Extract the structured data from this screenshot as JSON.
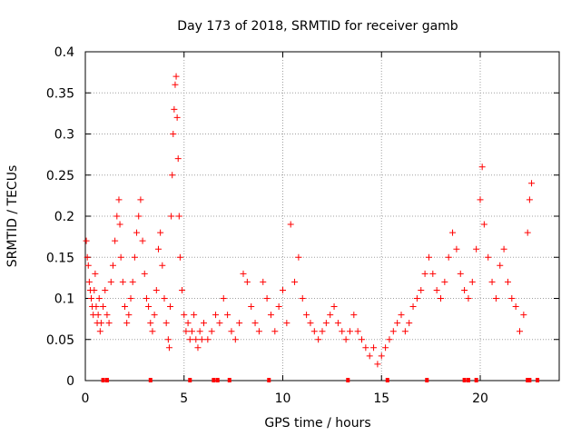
{
  "chart_data": {
    "type": "scatter",
    "title": "Day 173 of 2018, SRMTID for receiver gamb",
    "xlabel": "GPS time / hours",
    "ylabel": "SRMTID / TECUs",
    "xlim": [
      0,
      24
    ],
    "ylim": [
      0,
      0.4
    ],
    "xticks": [
      0,
      5,
      10,
      15,
      20
    ],
    "xtick_labels": [
      "0",
      "5",
      "10",
      "15",
      "20"
    ],
    "yticks": [
      0,
      0.05,
      0.1,
      0.15,
      0.2,
      0.25,
      0.3,
      0.35,
      0.4
    ],
    "ytick_labels": [
      "0",
      "0.05",
      "0.1",
      "0.15",
      "0.2",
      "0.25",
      "0.3",
      "0.35",
      "0.4"
    ],
    "grid": true,
    "marker": "+",
    "color": "#ff0000",
    "series": [
      {
        "name": "SRMTID",
        "points": [
          [
            0.05,
            0.17
          ],
          [
            0.1,
            0.15
          ],
          [
            0.15,
            0.14
          ],
          [
            0.2,
            0.12
          ],
          [
            0.25,
            0.11
          ],
          [
            0.3,
            0.1
          ],
          [
            0.35,
            0.09
          ],
          [
            0.4,
            0.08
          ],
          [
            0.45,
            0.11
          ],
          [
            0.5,
            0.13
          ],
          [
            0.55,
            0.09
          ],
          [
            0.6,
            0.07
          ],
          [
            0.65,
            0.08
          ],
          [
            0.7,
            0.1
          ],
          [
            0.75,
            0.06
          ],
          [
            0.8,
            0.07
          ],
          [
            0.9,
            0.09
          ],
          [
            1.0,
            0.11
          ],
          [
            1.1,
            0.08
          ],
          [
            1.2,
            0.07
          ],
          [
            1.3,
            0.12
          ],
          [
            1.4,
            0.14
          ],
          [
            1.5,
            0.17
          ],
          [
            1.6,
            0.2
          ],
          [
            1.7,
            0.22
          ],
          [
            1.75,
            0.19
          ],
          [
            1.8,
            0.15
          ],
          [
            1.9,
            0.12
          ],
          [
            2.0,
            0.09
          ],
          [
            2.1,
            0.07
          ],
          [
            2.2,
            0.08
          ],
          [
            2.3,
            0.1
          ],
          [
            2.4,
            0.12
          ],
          [
            2.5,
            0.15
          ],
          [
            2.6,
            0.18
          ],
          [
            2.7,
            0.2
          ],
          [
            2.8,
            0.22
          ],
          [
            2.9,
            0.17
          ],
          [
            3.0,
            0.13
          ],
          [
            3.1,
            0.1
          ],
          [
            3.2,
            0.09
          ],
          [
            3.3,
            0.07
          ],
          [
            3.4,
            0.06
          ],
          [
            3.5,
            0.08
          ],
          [
            3.6,
            0.11
          ],
          [
            3.7,
            0.16
          ],
          [
            3.8,
            0.18
          ],
          [
            3.9,
            0.14
          ],
          [
            4.0,
            0.1
          ],
          [
            4.1,
            0.07
          ],
          [
            4.2,
            0.05
          ],
          [
            4.25,
            0.04
          ],
          [
            4.3,
            0.09
          ],
          [
            4.35,
            0.2
          ],
          [
            4.4,
            0.25
          ],
          [
            4.45,
            0.3
          ],
          [
            4.5,
            0.33
          ],
          [
            4.55,
            0.36
          ],
          [
            4.6,
            0.37
          ],
          [
            4.65,
            0.32
          ],
          [
            4.7,
            0.27
          ],
          [
            4.75,
            0.2
          ],
          [
            4.8,
            0.15
          ],
          [
            4.9,
            0.11
          ],
          [
            5.0,
            0.08
          ],
          [
            5.1,
            0.06
          ],
          [
            5.2,
            0.07
          ],
          [
            5.3,
            0.05
          ],
          [
            5.4,
            0.06
          ],
          [
            5.5,
            0.08
          ],
          [
            5.6,
            0.05
          ],
          [
            5.7,
            0.04
          ],
          [
            5.8,
            0.06
          ],
          [
            5.9,
            0.05
          ],
          [
            6.0,
            0.07
          ],
          [
            6.2,
            0.05
          ],
          [
            6.4,
            0.06
          ],
          [
            6.6,
            0.08
          ],
          [
            6.8,
            0.07
          ],
          [
            7.0,
            0.1
          ],
          [
            7.2,
            0.08
          ],
          [
            7.4,
            0.06
          ],
          [
            7.6,
            0.05
          ],
          [
            7.8,
            0.07
          ],
          [
            8.0,
            0.13
          ],
          [
            8.2,
            0.12
          ],
          [
            8.4,
            0.09
          ],
          [
            8.6,
            0.07
          ],
          [
            8.8,
            0.06
          ],
          [
            9.0,
            0.12
          ],
          [
            9.2,
            0.1
          ],
          [
            9.4,
            0.08
          ],
          [
            9.6,
            0.06
          ],
          [
            9.8,
            0.09
          ],
          [
            10.0,
            0.11
          ],
          [
            10.2,
            0.07
          ],
          [
            10.4,
            0.19
          ],
          [
            10.6,
            0.12
          ],
          [
            10.8,
            0.15
          ],
          [
            11.0,
            0.1
          ],
          [
            11.2,
            0.08
          ],
          [
            11.4,
            0.07
          ],
          [
            11.6,
            0.06
          ],
          [
            11.8,
            0.05
          ],
          [
            12.0,
            0.06
          ],
          [
            12.2,
            0.07
          ],
          [
            12.4,
            0.08
          ],
          [
            12.6,
            0.09
          ],
          [
            12.8,
            0.07
          ],
          [
            13.0,
            0.06
          ],
          [
            13.2,
            0.05
          ],
          [
            13.4,
            0.06
          ],
          [
            13.6,
            0.08
          ],
          [
            13.8,
            0.06
          ],
          [
            14.0,
            0.05
          ],
          [
            14.2,
            0.04
          ],
          [
            14.4,
            0.03
          ],
          [
            14.6,
            0.04
          ],
          [
            14.8,
            0.02
          ],
          [
            15.0,
            0.03
          ],
          [
            15.2,
            0.04
          ],
          [
            15.4,
            0.05
          ],
          [
            15.6,
            0.06
          ],
          [
            15.8,
            0.07
          ],
          [
            16.0,
            0.08
          ],
          [
            16.2,
            0.06
          ],
          [
            16.4,
            0.07
          ],
          [
            16.6,
            0.09
          ],
          [
            16.8,
            0.1
          ],
          [
            17.0,
            0.11
          ],
          [
            17.2,
            0.13
          ],
          [
            17.4,
            0.15
          ],
          [
            17.6,
            0.13
          ],
          [
            17.8,
            0.11
          ],
          [
            18.0,
            0.1
          ],
          [
            18.2,
            0.12
          ],
          [
            18.4,
            0.15
          ],
          [
            18.6,
            0.18
          ],
          [
            18.8,
            0.16
          ],
          [
            19.0,
            0.13
          ],
          [
            19.2,
            0.11
          ],
          [
            19.4,
            0.1
          ],
          [
            19.6,
            0.12
          ],
          [
            19.8,
            0.16
          ],
          [
            20.0,
            0.22
          ],
          [
            20.1,
            0.26
          ],
          [
            20.2,
            0.19
          ],
          [
            20.4,
            0.15
          ],
          [
            20.6,
            0.12
          ],
          [
            20.8,
            0.1
          ],
          [
            21.0,
            0.14
          ],
          [
            21.2,
            0.16
          ],
          [
            21.4,
            0.12
          ],
          [
            21.6,
            0.1
          ],
          [
            21.8,
            0.09
          ],
          [
            22.0,
            0.06
          ],
          [
            22.2,
            0.08
          ],
          [
            22.4,
            0.18
          ],
          [
            22.5,
            0.22
          ],
          [
            22.6,
            0.24
          ]
        ]
      }
    ],
    "gap_markers_x": [
      0.9,
      1.1,
      3.3,
      5.3,
      6.5,
      6.7,
      7.3,
      9.3,
      13.3,
      15.3,
      17.3,
      19.2,
      19.4,
      19.8,
      22.4,
      22.5,
      22.9
    ]
  }
}
